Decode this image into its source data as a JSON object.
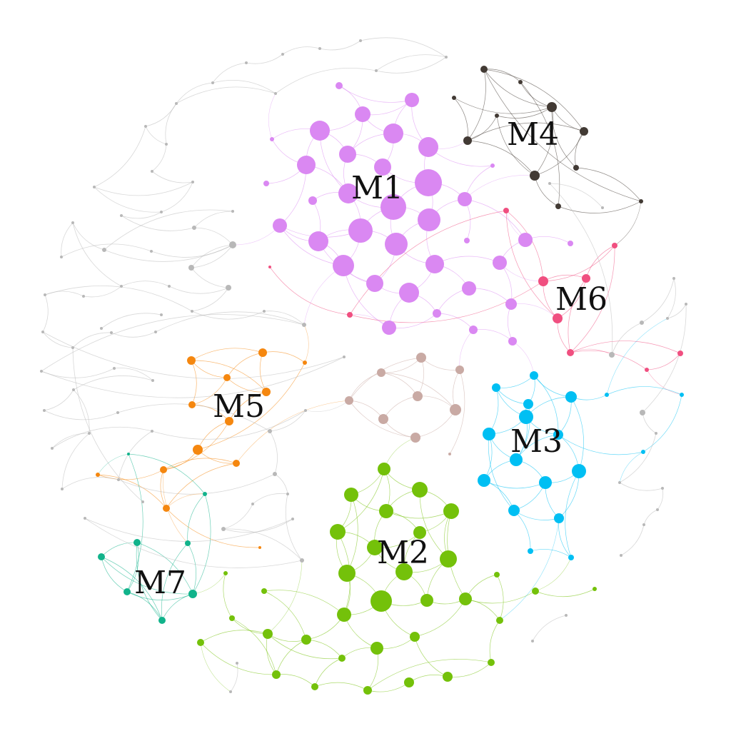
{
  "diagram": {
    "type": "network-graph",
    "background": "#ffffff",
    "modules": [
      {
        "id": "M1",
        "label": "M1",
        "color": "#da88f2"
      },
      {
        "id": "M2",
        "label": "M2",
        "color": "#74c10a"
      },
      {
        "id": "M3",
        "label": "M3",
        "color": "#00bff3"
      },
      {
        "id": "M4",
        "label": "M4",
        "color": "#423a34"
      },
      {
        "id": "M5",
        "label": "M5",
        "color": "#f5870f"
      },
      {
        "id": "M6",
        "label": "M6",
        "color": "#f04f80"
      },
      {
        "id": "M7",
        "label": "M7",
        "color": "#11b38b"
      },
      {
        "id": "unlabeled-brown",
        "label": "",
        "color": "#c9aaa4"
      },
      {
        "id": "unclustered",
        "label": "",
        "color": "#b8b8b8"
      }
    ]
  }
}
